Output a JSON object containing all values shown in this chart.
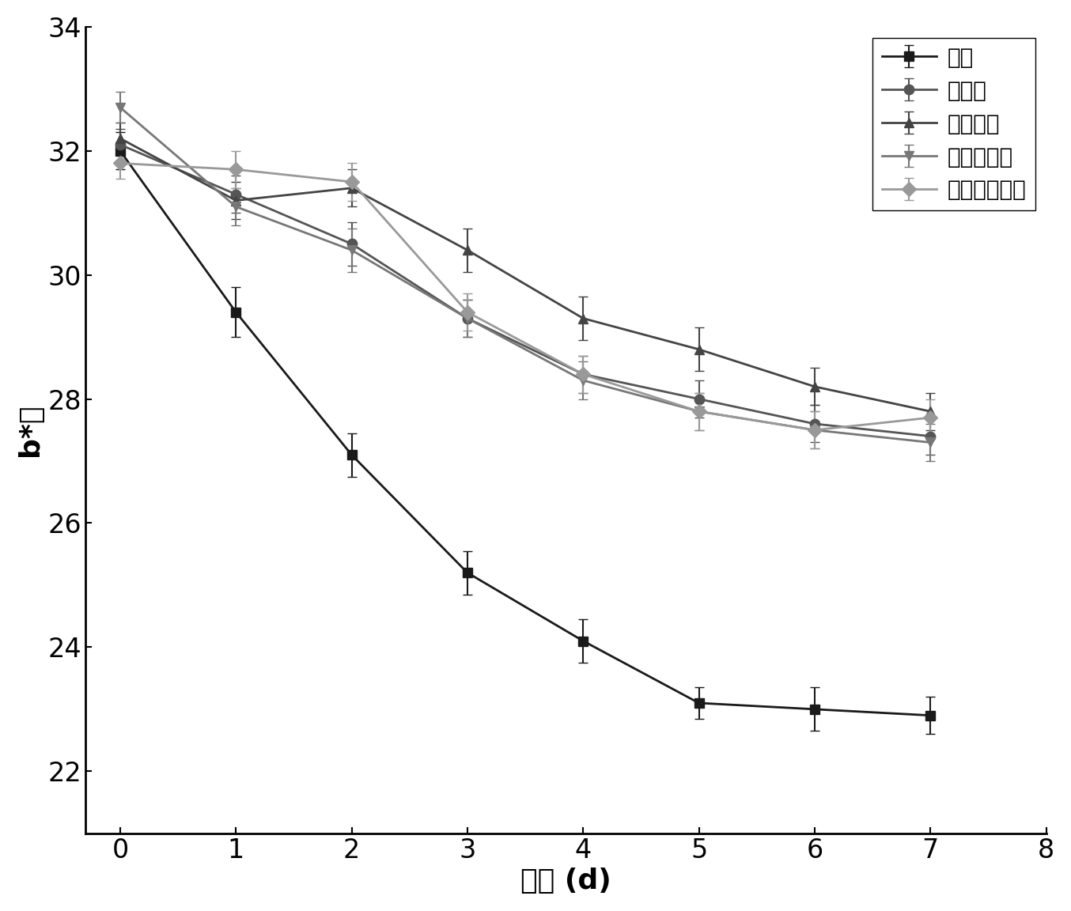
{
  "x": [
    0,
    1,
    2,
    3,
    4,
    5,
    6,
    7
  ],
  "series": {
    "空白": {
      "y": [
        32.0,
        29.4,
        27.1,
        25.2,
        24.1,
        23.1,
        23.0,
        22.9
      ],
      "yerr": [
        0.3,
        0.4,
        0.35,
        0.35,
        0.35,
        0.25,
        0.35,
        0.3
      ],
      "color": "#1a1a1a",
      "marker": "s",
      "linewidth": 2.0,
      "markersize": 9
    },
    "壳聚糖": {
      "y": [
        32.1,
        31.3,
        30.5,
        29.3,
        28.4,
        28.0,
        27.6,
        27.4
      ],
      "yerr": [
        0.25,
        0.3,
        0.35,
        0.3,
        0.3,
        0.3,
        0.3,
        0.3
      ],
      "color": "#555555",
      "marker": "o",
      "linewidth": 2.0,
      "markersize": 9
    },
    "复合多糖": {
      "y": [
        32.2,
        31.2,
        31.4,
        30.4,
        29.3,
        28.8,
        28.2,
        27.8
      ],
      "yerr": [
        0.25,
        0.3,
        0.3,
        0.35,
        0.35,
        0.35,
        0.3,
        0.3
      ],
      "color": "#444444",
      "marker": "^",
      "linewidth": 2.0,
      "markersize": 9
    },
    "功能性多糖": {
      "y": [
        32.7,
        31.1,
        30.4,
        29.3,
        28.3,
        27.8,
        27.5,
        27.3
      ],
      "yerr": [
        0.25,
        0.3,
        0.35,
        0.3,
        0.3,
        0.3,
        0.3,
        0.3
      ],
      "color": "#777777",
      "marker": "v",
      "linewidth": 2.0,
      "markersize": 9
    },
    "羧甲基纤维素": {
      "y": [
        31.8,
        31.7,
        31.5,
        29.4,
        28.4,
        27.8,
        27.5,
        27.7
      ],
      "yerr": [
        0.25,
        0.3,
        0.3,
        0.3,
        0.3,
        0.3,
        0.3,
        0.3
      ],
      "color": "#999999",
      "marker": "D",
      "linewidth": 2.0,
      "markersize": 9
    }
  },
  "xlabel": "时间 (d)",
  "ylabel": "b*值",
  "xlim": [
    -0.3,
    8
  ],
  "ylim": [
    21.0,
    34.0
  ],
  "xticks": [
    0,
    1,
    2,
    3,
    4,
    5,
    6,
    7,
    8
  ],
  "yticks": [
    22,
    24,
    26,
    28,
    30,
    32,
    34
  ],
  "xlabel_fontsize": 26,
  "ylabel_fontsize": 26,
  "tick_fontsize": 24,
  "legend_fontsize": 20,
  "background_color": "#ffffff"
}
